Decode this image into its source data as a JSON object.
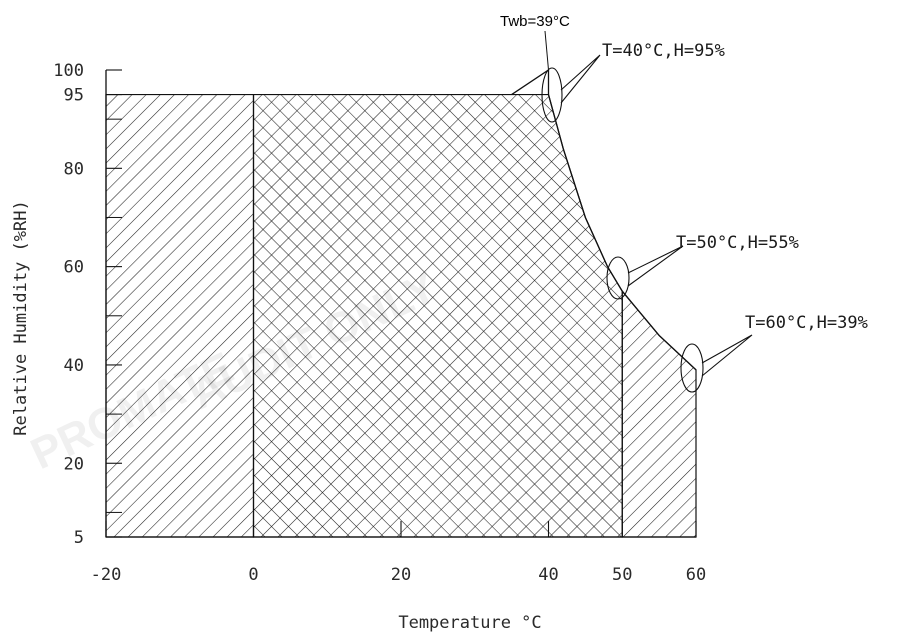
{
  "chart_data": {
    "type": "area",
    "title": "",
    "xlabel": "Temperature °C",
    "ylabel": "Relative Humidity (%RH)",
    "xlim": [
      -20,
      60
    ],
    "ylim": [
      5,
      100
    ],
    "x_ticks": [
      {
        "value": -20,
        "label": "-20"
      },
      {
        "value": 0,
        "label": "0"
      },
      {
        "value": 20,
        "label": "20"
      },
      {
        "value": 40,
        "label": "40"
      },
      {
        "value": 50,
        "label": "50"
      },
      {
        "value": 60,
        "label": "60"
      }
    ],
    "y_ticks": [
      {
        "value": 5,
        "label": "5"
      },
      {
        "value": 20,
        "label": "20"
      },
      {
        "value": 40,
        "label": "40"
      },
      {
        "value": 60,
        "label": "60"
      },
      {
        "value": 80,
        "label": "80"
      },
      {
        "value": 95,
        "label": "95"
      },
      {
        "value": 100,
        "label": "100"
      }
    ],
    "y_minor_ticks": [
      90,
      70,
      50,
      30,
      10
    ],
    "regions": [
      {
        "pattern": "single-hatch",
        "polygon": [
          [
            -20,
            5
          ],
          [
            -20,
            95
          ],
          [
            0,
            95
          ],
          [
            0,
            5
          ]
        ]
      },
      {
        "pattern": "cross-hatch",
        "polygon": [
          [
            0,
            5
          ],
          [
            0,
            95
          ],
          [
            40,
            95
          ],
          [
            42,
            84
          ],
          [
            45,
            70
          ],
          [
            48,
            60
          ],
          [
            50,
            55
          ],
          [
            50,
            5
          ]
        ]
      },
      {
        "pattern": "single-hatch",
        "polygon": [
          [
            50,
            5
          ],
          [
            50,
            55
          ],
          [
            55,
            46
          ],
          [
            60,
            39
          ],
          [
            60,
            5
          ]
        ]
      }
    ],
    "boundary_curve": {
      "name": "Twb=39°C",
      "points": [
        [
          35,
          95
        ],
        [
          40,
          100
        ],
        [
          40,
          95
        ],
        [
          42,
          84
        ],
        [
          45,
          70
        ],
        [
          48,
          60
        ],
        [
          50,
          55
        ],
        [
          55,
          46
        ],
        [
          60,
          39
        ]
      ]
    },
    "annotations": [
      {
        "text": "Twb=39°C",
        "x": 40,
        "y": 100
      },
      {
        "text": "T=40°C,H=95%",
        "x": 40,
        "y": 95
      },
      {
        "text": "T=50°C,H=55%",
        "x": 50,
        "y": 55
      },
      {
        "text": "T=60°C,H=39%",
        "x": 60,
        "y": 39
      }
    ],
    "grid": false,
    "legend": "none"
  }
}
